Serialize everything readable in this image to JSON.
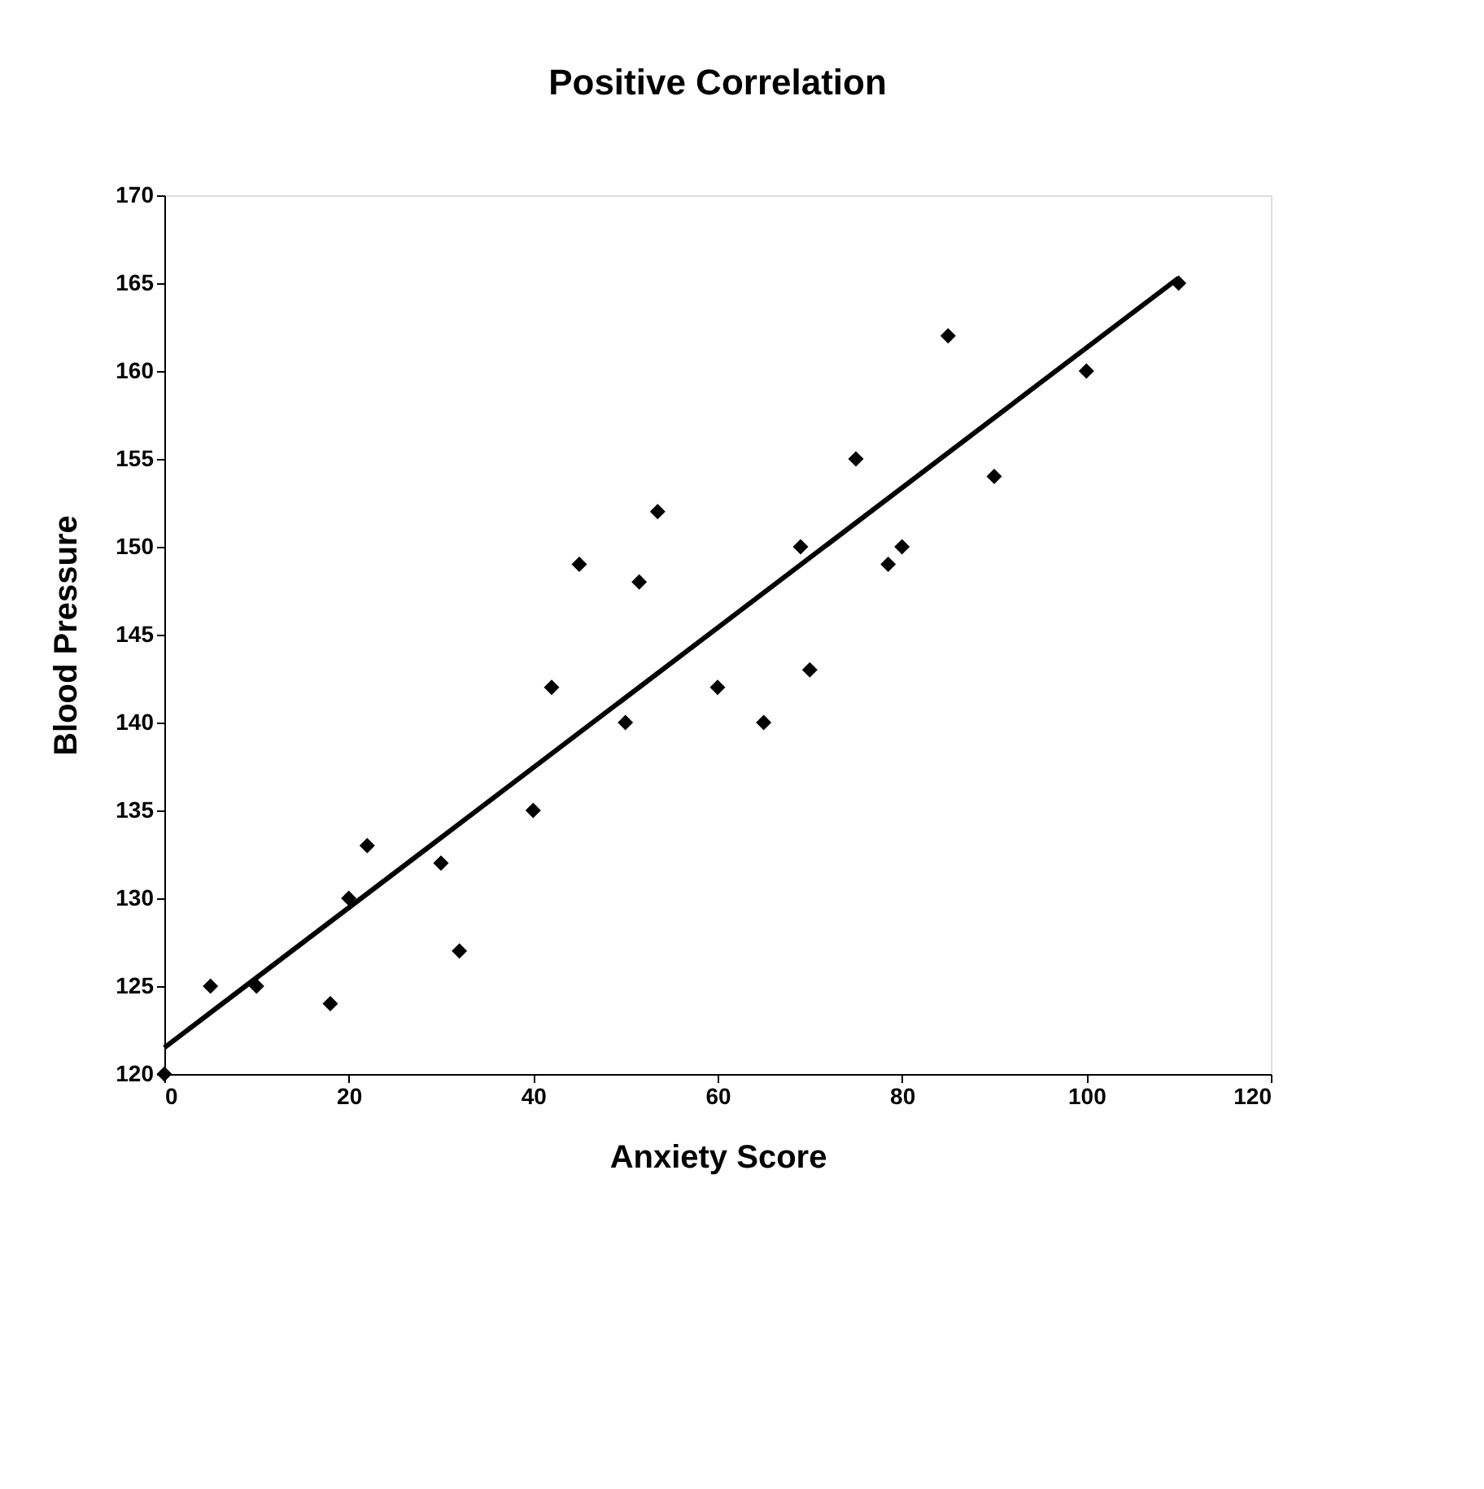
{
  "chart_data": {
    "type": "scatter",
    "title": "Positive Correlation",
    "xlabel": "Anxiety Score",
    "ylabel": "Blood Pressure",
    "xlim": [
      0,
      120
    ],
    "xticks": [
      0,
      20,
      40,
      60,
      80,
      100,
      120
    ],
    "ylim": [
      120,
      170
    ],
    "yticks": [
      120,
      125,
      130,
      135,
      140,
      145,
      150,
      155,
      160,
      165,
      170
    ],
    "grid": false,
    "series": [
      {
        "color": "#000000",
        "marker": "diamond",
        "x": [
          0,
          5,
          10,
          18,
          20,
          22,
          30,
          32,
          40,
          42,
          45,
          50,
          51.5,
          53.5,
          60,
          65,
          69,
          70,
          75,
          78.5,
          80,
          85,
          90,
          100,
          110
        ],
        "values": [
          120,
          125,
          125,
          124,
          130,
          133,
          132,
          127,
          135,
          142,
          149,
          140,
          148,
          152,
          142,
          140,
          150,
          143,
          155,
          149,
          150,
          162,
          154,
          160,
          165
        ]
      },
      {
        "type": "line",
        "color": "#000000",
        "line_style": "solid",
        "marker": "none",
        "x": [
          0,
          110
        ],
        "values": [
          121.5,
          165.3
        ]
      }
    ]
  }
}
